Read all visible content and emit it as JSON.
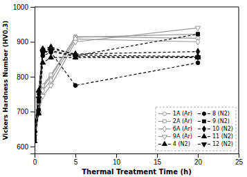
{
  "chart_data": {
    "type": "line",
    "xlabel": "Thermal Treatment Time (h)",
    "ylabel": "Vickers Hardness Number (HV0.3)",
    "x": [
      0,
      0.5,
      1,
      2,
      5,
      20
    ],
    "series": [
      {
        "name": "1A (Ar)",
        "color": "#999999",
        "line_style": "solid",
        "marker": "circle-open",
        "values": [
          650,
          720,
          770,
          800,
          915,
          910
        ]
      },
      {
        "name": "2A (Ar)",
        "color": "#999999",
        "line_style": "solid",
        "marker": "square-open",
        "values": [
          645,
          725,
          775,
          805,
          913,
          922
        ]
      },
      {
        "name": "6A (Ar)",
        "color": "#999999",
        "line_style": "solid",
        "marker": "diamond-open",
        "values": [
          635,
          710,
          760,
          790,
          908,
          900
        ]
      },
      {
        "name": "9A (Ar)",
        "color": "#999999",
        "line_style": "solid",
        "marker": "triangle-down-open",
        "values": [
          630,
          695,
          745,
          775,
          900,
          940
        ]
      },
      {
        "name": "4 (N2)",
        "color": "#000000",
        "line_style": "dashed",
        "marker": "triangle-up",
        "values": [
          615,
          695,
          840,
          855,
          855,
          855
        ]
      },
      {
        "name": "8 (N2)",
        "color": "#000000",
        "line_style": "dashed",
        "marker": "circle",
        "values": [
          620,
          705,
          860,
          870,
          775,
          840
        ]
      },
      {
        "name": "9 (N2)",
        "color": "#000000",
        "line_style": "dashed",
        "marker": "square",
        "values": [
          628,
          730,
          870,
          875,
          860,
          922
        ]
      },
      {
        "name": "10 (N2)",
        "color": "#000000",
        "line_style": "dashed",
        "marker": "diamond",
        "values": [
          640,
          750,
          875,
          880,
          865,
          872
        ]
      },
      {
        "name": "11 (N2)",
        "color": "#000000",
        "line_style": "dashed",
        "marker": "triangle-up",
        "values": [
          645,
          760,
          880,
          885,
          862,
          858
        ]
      },
      {
        "name": "12 (N2)",
        "color": "#000000",
        "line_style": "dashed",
        "marker": "triangle-down",
        "values": [
          640,
          738,
          870,
          872,
          858,
          856
        ]
      }
    ],
    "xlim": [
      0,
      25
    ],
    "xticks": [
      0,
      5,
      10,
      15,
      20,
      25
    ],
    "ylim": [
      580,
      1000
    ],
    "yticks": [
      600,
      700,
      800,
      900,
      1000
    ],
    "grid": false,
    "legend": "lower right"
  }
}
